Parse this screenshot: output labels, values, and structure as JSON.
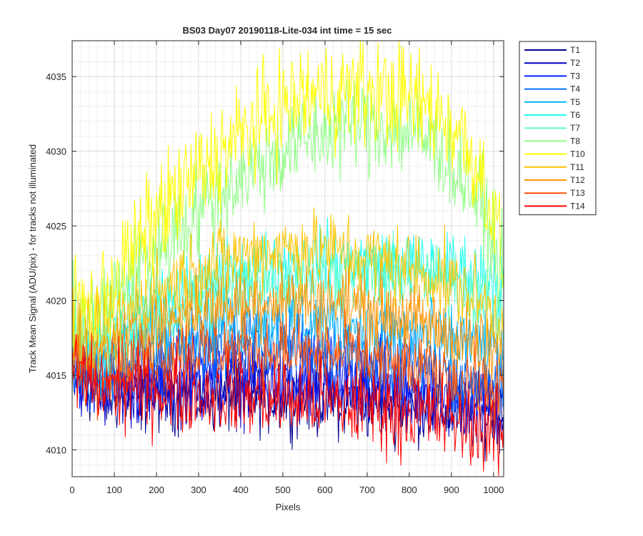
{
  "chart_data": {
    "type": "line",
    "title": "BS03 Day07 20190118-Lite-034 int time = 15 sec",
    "xlabel": "Pixels",
    "ylabel": "Track Mean Signal (ADU/pix) - for tracks not illuminated",
    "xlim": [
      0,
      1024
    ],
    "ylim": [
      4008.2,
      4037.4
    ],
    "xticks": [
      0,
      100,
      200,
      300,
      400,
      500,
      600,
      700,
      800,
      900,
      1000
    ],
    "yticks": [
      4010,
      4015,
      4020,
      4025,
      4030,
      4035
    ],
    "grid": true,
    "minor_grid": true,
    "legend_position": "outside-top-right",
    "x": [
      0,
      50,
      100,
      150,
      200,
      250,
      300,
      350,
      400,
      450,
      500,
      550,
      600,
      650,
      700,
      750,
      800,
      850,
      900,
      950,
      1000,
      1024
    ],
    "series": [
      {
        "name": "T1",
        "color": "#00008f",
        "noise": 1.2,
        "values": [
          4015.0,
          4014.0,
          4013.6,
          4013.6,
          4013.6,
          4013.6,
          4013.6,
          4013.6,
          4013.6,
          4013.5,
          4013.5,
          4013.4,
          4013.3,
          4013.2,
          4013.1,
          4013.0,
          4012.9,
          4012.8,
          4012.6,
          4012.4,
          4012.3,
          4012.3
        ]
      },
      {
        "name": "T2",
        "color": "#0000cc",
        "noise": 1.2,
        "values": [
          4015.2,
          4014.2,
          4014.0,
          4014.0,
          4014.1,
          4014.2,
          4014.2,
          4014.2,
          4014.1,
          4014.0,
          4014.0,
          4013.9,
          4013.8,
          4013.7,
          4013.6,
          4013.5,
          4013.3,
          4013.1,
          4012.9,
          4012.7,
          4012.6,
          4012.6
        ]
      },
      {
        "name": "T3",
        "color": "#0020ff",
        "noise": 1.2,
        "values": [
          4015.3,
          4014.5,
          4014.5,
          4014.8,
          4015.2,
          4015.4,
          4015.5,
          4015.6,
          4015.6,
          4015.6,
          4015.5,
          4015.4,
          4015.3,
          4015.1,
          4014.9,
          4014.7,
          4014.5,
          4014.2,
          4013.9,
          4013.6,
          4013.4,
          4013.4
        ]
      },
      {
        "name": "T4",
        "color": "#0070ff",
        "noise": 1.2,
        "values": [
          4015.5,
          4015.0,
          4015.4,
          4016.0,
          4016.5,
          4016.8,
          4017.0,
          4017.1,
          4017.1,
          4017.1,
          4017.0,
          4016.9,
          4016.7,
          4016.5,
          4016.3,
          4016.1,
          4015.8,
          4015.5,
          4015.2,
          4014.8,
          4014.5,
          4014.4
        ]
      },
      {
        "name": "T5",
        "color": "#00b4ff",
        "noise": 1.2,
        "values": [
          4016.0,
          4015.8,
          4016.3,
          4017.0,
          4017.6,
          4018.0,
          4018.3,
          4018.5,
          4018.6,
          4018.7,
          4018.7,
          4018.6,
          4018.5,
          4018.4,
          4018.2,
          4018.0,
          4017.8,
          4017.6,
          4017.4,
          4017.1,
          4016.8,
          4016.6
        ]
      },
      {
        "name": "T6",
        "color": "#1dfff0",
        "noise": 1.2,
        "values": [
          4017.0,
          4017.2,
          4018.1,
          4019.0,
          4019.8,
          4020.4,
          4021.0,
          4021.5,
          4021.9,
          4022.2,
          4022.4,
          4022.5,
          4022.6,
          4022.5,
          4022.4,
          4022.4,
          4022.3,
          4022.2,
          4022.1,
          4021.9,
          4021.5,
          4020.9
        ]
      },
      {
        "name": "T7",
        "color": "#5effc4",
        "noise": 1.2,
        "values": [
          4016.8,
          4016.5,
          4017.2,
          4018.0,
          4018.8,
          4019.4,
          4020.0,
          4020.5,
          4021.0,
          4021.3,
          4021.5,
          4021.7,
          4021.8,
          4021.8,
          4021.7,
          4021.7,
          4021.6,
          4021.5,
          4021.2,
          4020.6,
          4019.5,
          4018.9
        ]
      },
      {
        "name": "T8",
        "color": "#8fff84",
        "noise": 1.6,
        "values": [
          4018.5,
          4018.6,
          4020.3,
          4022.0,
          4023.5,
          4024.7,
          4026.0,
          4027.2,
          4028.3,
          4029.3,
          4030.0,
          4030.7,
          4031.3,
          4031.8,
          4031.8,
          4031.6,
          4031.3,
          4030.6,
          4029.3,
          4027.4,
          4024.0,
          4021.5
        ]
      },
      {
        "name": "T10",
        "color": "#ffff00",
        "noise": 1.8,
        "values": [
          4020.0,
          4019.3,
          4021.3,
          4023.5,
          4025.5,
          4027.0,
          4028.5,
          4029.8,
          4031.0,
          4032.1,
          4033.0,
          4033.6,
          4033.9,
          4034.0,
          4033.9,
          4033.8,
          4033.5,
          4032.9,
          4031.8,
          4029.8,
          4026.0,
          4022.0
        ]
      },
      {
        "name": "T11",
        "color": "#ffc400",
        "noise": 1.3,
        "values": [
          4017.5,
          4017.4,
          4018.5,
          4019.6,
          4020.6,
          4021.4,
          4022.1,
          4022.6,
          4023.0,
          4023.3,
          4023.5,
          4023.5,
          4023.4,
          4023.2,
          4022.9,
          4022.6,
          4022.2,
          4021.7,
          4021.1,
          4020.3,
          4019.2,
          4018.6
        ]
      },
      {
        "name": "T12",
        "color": "#ff9400",
        "noise": 1.2,
        "values": [
          4016.5,
          4016.1,
          4016.8,
          4017.6,
          4018.3,
          4018.9,
          4019.4,
          4019.7,
          4019.9,
          4020.1,
          4020.1,
          4020.1,
          4020.0,
          4019.8,
          4019.5,
          4019.2,
          4018.8,
          4018.3,
          4017.7,
          4017.1,
          4016.4,
          4016.0
        ]
      },
      {
        "name": "T13",
        "color": "#ff5000",
        "noise": 1.2,
        "values": [
          4016.0,
          4015.1,
          4015.3,
          4015.8,
          4016.2,
          4016.5,
          4016.6,
          4016.7,
          4016.7,
          4016.7,
          4016.6,
          4016.5,
          4016.4,
          4016.2,
          4016.0,
          4015.7,
          4015.4,
          4015.1,
          4014.8,
          4014.4,
          4014.0,
          4013.8
        ]
      },
      {
        "name": "T14",
        "color": "#ff0000",
        "noise": 1.4,
        "values": [
          4015.5,
          4014.5,
          4014.2,
          4014.1,
          4014.0,
          4013.9,
          4013.8,
          4013.7,
          4013.6,
          4013.5,
          4013.4,
          4013.3,
          4013.2,
          4013.0,
          4012.9,
          4012.7,
          4012.5,
          4012.3,
          4012.0,
          4011.6,
          4011.2,
          4011.0
        ]
      }
    ]
  }
}
